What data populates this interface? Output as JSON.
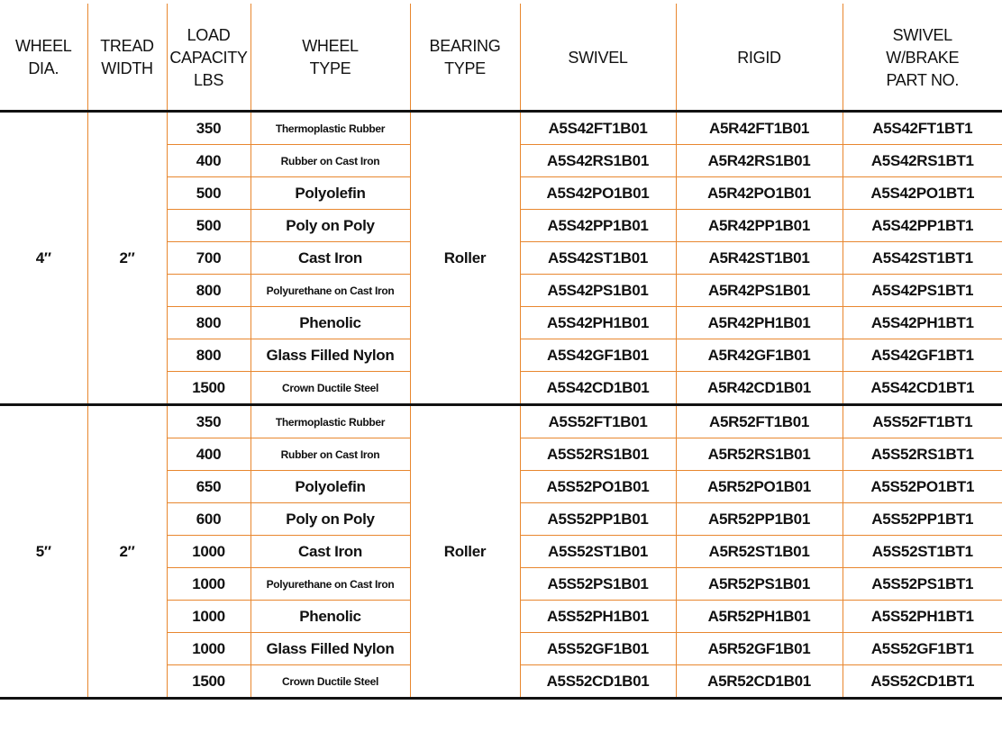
{
  "table": {
    "headers": [
      [
        "WHEEL",
        "DIA."
      ],
      [
        "TREAD",
        "WIDTH"
      ],
      [
        "LOAD",
        "CAPACITY",
        "LBS"
      ],
      [
        "WHEEL",
        "TYPE"
      ],
      [
        "BEARING",
        "TYPE"
      ],
      [
        "SWIVEL"
      ],
      [
        "RIGID"
      ],
      [
        "SWIVEL",
        "W/BRAKE",
        "PART NO."
      ]
    ],
    "groups": [
      {
        "wheel_dia": "4″",
        "tread_width": "2″",
        "bearing_type": "Roller",
        "rows": [
          [
            "350",
            "Thermoplastic Rubber",
            "A5S42FT1B01",
            "A5R42FT1B01",
            "A5S42FT1BT1"
          ],
          [
            "400",
            "Rubber on Cast Iron",
            "A5S42RS1B01",
            "A5R42RS1B01",
            "A5S42RS1BT1"
          ],
          [
            "500",
            "Polyolefin",
            "A5S42PO1B01",
            "A5R42PO1B01",
            "A5S42PO1BT1"
          ],
          [
            "500",
            "Poly on Poly",
            "A5S42PP1B01",
            "A5R42PP1B01",
            "A5S42PP1BT1"
          ],
          [
            "700",
            "Cast Iron",
            "A5S42ST1B01",
            "A5R42ST1B01",
            "A5S42ST1BT1"
          ],
          [
            "800",
            "Polyurethane on Cast Iron",
            "A5S42PS1B01",
            "A5R42PS1B01",
            "A5S42PS1BT1"
          ],
          [
            "800",
            "Phenolic",
            "A5S42PH1B01",
            "A5R42PH1B01",
            "A5S42PH1BT1"
          ],
          [
            "800",
            "Glass Filled Nylon",
            "A5S42GF1B01",
            "A5R42GF1B01",
            "A5S42GF1BT1"
          ],
          [
            "1500",
            "Crown Ductile Steel",
            "A5S42CD1B01",
            "A5R42CD1B01",
            "A5S42CD1BT1"
          ]
        ]
      },
      {
        "wheel_dia": "5″",
        "tread_width": "2″",
        "bearing_type": "Roller",
        "rows": [
          [
            "350",
            "Thermoplastic Rubber",
            "A5S52FT1B01",
            "A5R52FT1B01",
            "A5S52FT1BT1"
          ],
          [
            "400",
            "Rubber on Cast Iron",
            "A5S52RS1B01",
            "A5R52RS1B01",
            "A5S52RS1BT1"
          ],
          [
            "650",
            "Polyolefin",
            "A5S52PO1B01",
            "A5R52PO1B01",
            "A5S52PO1BT1"
          ],
          [
            "600",
            "Poly on Poly",
            "A5S52PP1B01",
            "A5R52PP1B01",
            "A5S52PP1BT1"
          ],
          [
            "1000",
            "Cast Iron",
            "A5S52ST1B01",
            "A5R52ST1B01",
            "A5S52ST1BT1"
          ],
          [
            "1000",
            "Polyurethane on Cast Iron",
            "A5S52PS1B01",
            "A5R52PS1B01",
            "A5S52PS1BT1"
          ],
          [
            "1000",
            "Phenolic",
            "A5S52PH1B01",
            "A5R52PH1B01",
            "A5S52PH1BT1"
          ],
          [
            "1000",
            "Glass Filled Nylon",
            "A5S52GF1B01",
            "A5R52GF1B01",
            "A5S52GF1BT1"
          ],
          [
            "1500",
            "Crown Ductile Steel",
            "A5S52CD1B01",
            "A5R52CD1B01",
            "A5S52CD1BT1"
          ]
        ]
      }
    ]
  }
}
